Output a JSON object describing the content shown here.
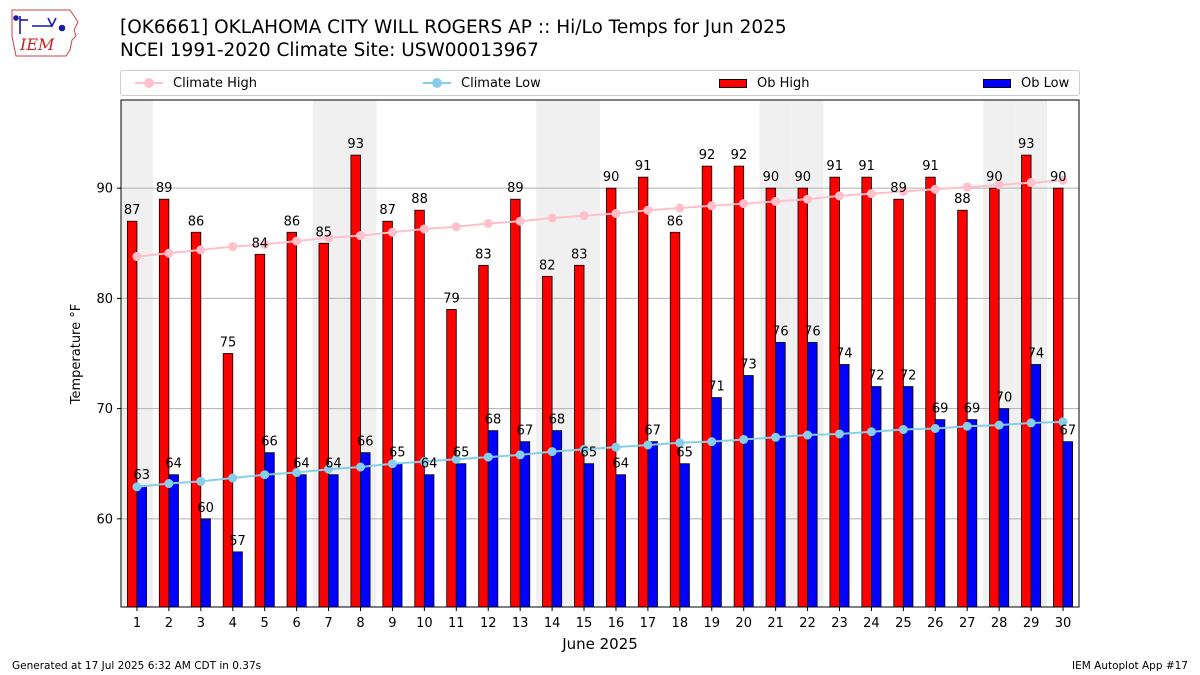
{
  "header": {
    "title_line1": "[OK6661] OKLAHOMA CITY WILL ROGERS AP :: Hi/Lo Temps for Jun 2025",
    "title_line2": "NCEI 1991-2020 Climate Site: USW00013967"
  },
  "logo": {
    "text": "IEM",
    "color": "#cc2222"
  },
  "legend": {
    "climate_high": "Climate High",
    "climate_low": "Climate Low",
    "ob_high": "Ob High",
    "ob_low": "Ob Low"
  },
  "footer": {
    "left": "Generated at 17 Jul 2025 6:32 AM CDT in 0.37s",
    "right": "IEM Autoplot App #17"
  },
  "colors": {
    "ob_high": "#ff0000",
    "ob_low": "#0000ff",
    "climate_high": "#ffc0cb",
    "climate_low": "#87ceeb",
    "weekend_shade": "#f0f0f0",
    "grid": "#b0b0b0"
  },
  "chart_data": {
    "type": "bar",
    "xlabel": "June 2025",
    "ylabel": "Temperature °F",
    "ylim": [
      52,
      98
    ],
    "yticks": [
      60,
      70,
      80,
      90
    ],
    "grid": "y",
    "legend_position": "top",
    "categories": [
      "1",
      "2",
      "3",
      "4",
      "5",
      "6",
      "7",
      "8",
      "9",
      "10",
      "11",
      "12",
      "13",
      "14",
      "15",
      "16",
      "17",
      "18",
      "19",
      "20",
      "21",
      "22",
      "23",
      "24",
      "25",
      "26",
      "27",
      "28",
      "29",
      "30"
    ],
    "shaded_days": [
      1,
      7,
      8,
      14,
      15,
      21,
      22,
      28,
      29
    ],
    "series": [
      {
        "name": "Ob High",
        "kind": "bar",
        "values": [
          87,
          89,
          86,
          75,
          84,
          86,
          85,
          93,
          87,
          88,
          79,
          83,
          89,
          82,
          83,
          90,
          91,
          86,
          92,
          92,
          90,
          90,
          91,
          91,
          89,
          91,
          88,
          90,
          93,
          90
        ]
      },
      {
        "name": "Ob Low",
        "kind": "bar",
        "values": [
          63,
          64,
          60,
          57,
          66,
          64,
          64,
          66,
          65,
          64,
          65,
          68,
          67,
          68,
          65,
          64,
          67,
          65,
          71,
          73,
          76,
          76,
          74,
          72,
          72,
          69,
          69,
          70,
          74,
          67
        ]
      },
      {
        "name": "Climate High",
        "kind": "line",
        "values": [
          83.8,
          84.1,
          84.4,
          84.7,
          84.9,
          85.2,
          85.5,
          85.7,
          86.0,
          86.3,
          86.5,
          86.8,
          87.0,
          87.3,
          87.5,
          87.7,
          88.0,
          88.2,
          88.4,
          88.6,
          88.8,
          89.0,
          89.3,
          89.5,
          89.7,
          89.9,
          90.1,
          90.3,
          90.5,
          90.7
        ]
      },
      {
        "name": "Climate Low",
        "kind": "line",
        "values": [
          62.9,
          63.2,
          63.4,
          63.7,
          64.0,
          64.2,
          64.5,
          64.7,
          65.0,
          65.2,
          65.4,
          65.6,
          65.8,
          66.1,
          66.3,
          66.5,
          66.7,
          66.9,
          67.0,
          67.2,
          67.4,
          67.6,
          67.7,
          67.9,
          68.1,
          68.2,
          68.4,
          68.5,
          68.7,
          68.8
        ]
      }
    ]
  }
}
